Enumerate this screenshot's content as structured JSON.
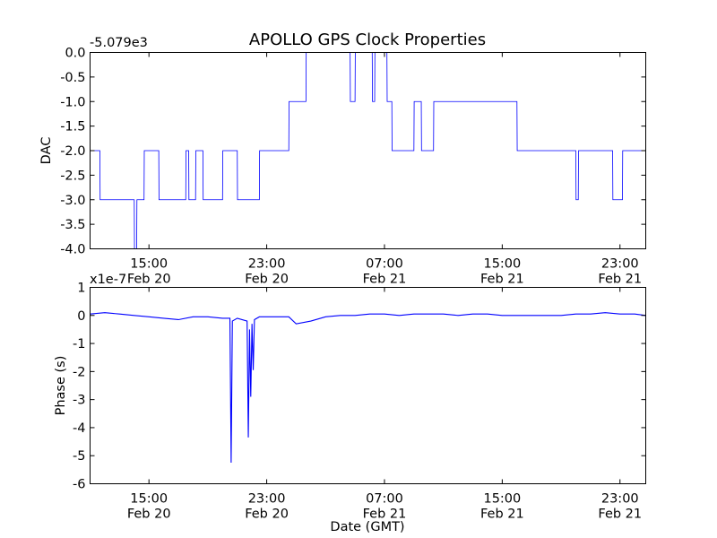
{
  "chart_data": [
    {
      "type": "line",
      "title": "APOLLO GPS Clock Properties",
      "ylabel": "DAC",
      "xlabel": "",
      "offset_label": "-5.079e3",
      "ylim": [
        -4.0,
        0.0
      ],
      "xlim": [
        "Feb 20 11:00",
        "Feb 22 00:45"
      ],
      "x_ticks": [
        {
          "time": "15:00",
          "date": "Feb 20"
        },
        {
          "time": "23:00",
          "date": "Feb 20"
        },
        {
          "time": "07:00",
          "date": "Feb 21"
        },
        {
          "time": "15:00",
          "date": "Feb 21"
        },
        {
          "time": "23:00",
          "date": "Feb 21"
        }
      ],
      "y_ticks": [
        "0.0",
        "-0.5",
        "-1.0",
        "-1.5",
        "-2.0",
        "-2.5",
        "-3.0",
        "-3.5",
        "-4.0"
      ],
      "color": "#0000ff",
      "series": [
        {
          "x": [
            "Feb 20 11:00",
            "Feb 20 11:40",
            "Feb 20 11:41",
            "Feb 20 11:53",
            "Feb 20 11:54",
            "Feb 20 14:00",
            "Feb 20 14:01",
            "Feb 20 14:10",
            "Feb 20 14:11",
            "Feb 20 14:40",
            "Feb 20 14:41",
            "Feb 20 15:40",
            "Feb 20 15:41",
            "Feb 20 17:30",
            "Feb 20 17:31",
            "Feb 20 17:42",
            "Feb 20 17:43",
            "Feb 20 18:10",
            "Feb 20 18:11",
            "Feb 20 18:40",
            "Feb 20 18:41",
            "Feb 20 20:00",
            "Feb 20 20:01",
            "Feb 20 21:00",
            "Feb 20 21:01",
            "Feb 20 22:30",
            "Feb 20 22:31",
            "Feb 21 00:30",
            "Feb 21 00:31",
            "Feb 21 01:20",
            "Feb 21 01:21",
            "Feb 21 01:40",
            "Feb 21 01:41",
            "Feb 21 02:10",
            "Feb 21 02:11",
            "Feb 21 04:40",
            "Feb 21 04:41",
            "Feb 21 05:00",
            "Feb 21 05:01",
            "Feb 21 06:10",
            "Feb 21 06:11",
            "Feb 21 06:20",
            "Feb 21 06:21",
            "Feb 21 07:10",
            "Feb 21 07:11",
            "Feb 21 07:30",
            "Feb 21 07:31",
            "Feb 21 09:00",
            "Feb 21 09:01",
            "Feb 21 09:30",
            "Feb 21 09:31",
            "Feb 21 10:20",
            "Feb 21 10:21",
            "Feb 21 16:00",
            "Feb 21 16:01",
            "Feb 21 17:10",
            "Feb 21 17:11",
            "Feb 21 20:00",
            "Feb 21 20:01",
            "Feb 21 20:10",
            "Feb 21 20:11",
            "Feb 21 21:00",
            "Feb 21 21:01",
            "Feb 21 22:30",
            "Feb 21 22:31",
            "Feb 21 23:10",
            "Feb 21 23:11",
            "Feb 21 23:20",
            "Feb 21 23:21",
            "Feb 22 00:45"
          ],
          "values": [
            -2,
            -2,
            -3,
            -3,
            -3,
            -3,
            -4,
            -4,
            -3,
            -3,
            -2,
            -2,
            -3,
            -3,
            -2,
            -2,
            -3,
            -3,
            -2,
            -2,
            -3,
            -3,
            -2,
            -2,
            -3,
            -3,
            -2,
            -2,
            -1,
            -1,
            -1,
            -1,
            0,
            0,
            0,
            0,
            -1,
            -1,
            0,
            0,
            -1,
            -1,
            0,
            0,
            -1,
            -1,
            -2,
            -2,
            -1,
            -1,
            -2,
            -2,
            -1,
            -1,
            -2,
            -2,
            -2,
            -2,
            -3,
            -3,
            -2,
            -2,
            -2,
            -2,
            -3,
            -3,
            -2,
            -2,
            -2,
            -2
          ]
        }
      ]
    },
    {
      "type": "line",
      "title": "",
      "ylabel": "Phase (s)",
      "xlabel": "Date (GMT)",
      "offset_label": "x1e-7",
      "ylim": [
        -6,
        1
      ],
      "xlim": [
        "Feb 20 11:00",
        "Feb 22 00:45"
      ],
      "x_ticks": [
        {
          "time": "15:00",
          "date": "Feb 20"
        },
        {
          "time": "23:00",
          "date": "Feb 20"
        },
        {
          "time": "07:00",
          "date": "Feb 21"
        },
        {
          "time": "15:00",
          "date": "Feb 21"
        },
        {
          "time": "23:00",
          "date": "Feb 21"
        }
      ],
      "y_ticks": [
        "1",
        "0",
        "-1",
        "-2",
        "-3",
        "-4",
        "-5",
        "-6"
      ],
      "color": "#0000ff",
      "series": [
        {
          "x": [
            "Feb 20 11:00",
            "Feb 20 12:00",
            "Feb 20 13:00",
            "Feb 20 14:00",
            "Feb 20 15:00",
            "Feb 20 16:00",
            "Feb 20 17:00",
            "Feb 20 18:00",
            "Feb 20 19:00",
            "Feb 20 20:00",
            "Feb 20 20:30",
            "Feb 20 20:35",
            "Feb 20 20:40",
            "Feb 20 21:00",
            "Feb 20 21:40",
            "Feb 20 21:45",
            "Feb 20 21:50",
            "Feb 20 21:55",
            "Feb 20 22:00",
            "Feb 20 22:05",
            "Feb 20 22:10",
            "Feb 20 22:30",
            "Feb 20 23:30",
            "Feb 21 00:30",
            "Feb 21 01:00",
            "Feb 21 02:00",
            "Feb 21 03:00",
            "Feb 21 04:00",
            "Feb 21 05:00",
            "Feb 21 06:00",
            "Feb 21 07:00",
            "Feb 21 08:00",
            "Feb 21 09:00",
            "Feb 21 10:00",
            "Feb 21 11:00",
            "Feb 21 12:00",
            "Feb 21 13:00",
            "Feb 21 14:00",
            "Feb 21 15:00",
            "Feb 21 16:00",
            "Feb 21 17:00",
            "Feb 21 18:00",
            "Feb 21 19:00",
            "Feb 21 20:00",
            "Feb 21 21:00",
            "Feb 21 22:00",
            "Feb 21 23:00",
            "Feb 22 00:00",
            "Feb 22 00:45"
          ],
          "values": [
            0.05,
            0.1,
            0.05,
            0.0,
            -0.05,
            -0.1,
            -0.15,
            -0.05,
            -0.05,
            -0.1,
            -0.1,
            -5.25,
            -0.2,
            -0.1,
            -0.2,
            -4.35,
            -0.5,
            -2.9,
            -0.3,
            -1.95,
            -0.15,
            -0.05,
            -0.05,
            -0.05,
            -0.3,
            -0.2,
            -0.05,
            0.0,
            0.0,
            0.05,
            0.05,
            0.0,
            0.05,
            0.05,
            0.05,
            0.0,
            0.05,
            0.05,
            0.0,
            0.0,
            0.0,
            0.0,
            0.0,
            0.05,
            0.05,
            0.1,
            0.05,
            0.05,
            0.0
          ]
        }
      ]
    }
  ]
}
